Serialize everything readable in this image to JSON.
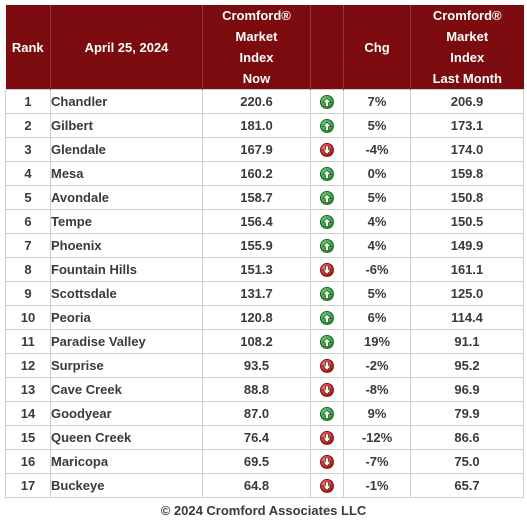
{
  "headers": {
    "rank": "Rank",
    "date": "April 25, 2024",
    "now": [
      "Cromford®",
      "Market",
      "Index",
      "Now"
    ],
    "chg": "Chg",
    "last": [
      "Cromford®",
      "Market",
      "Index",
      "Last Month"
    ]
  },
  "colors": {
    "header_bg": "#7b0b0e",
    "up": "#1f9a2e",
    "down": "#c11414"
  },
  "chart_data": {
    "type": "table",
    "columns": [
      "Rank",
      "April 25, 2024",
      "Cromford® Market Index Now",
      "",
      "Chg",
      "Cromford® Market Index Last Month"
    ],
    "rows": [
      {
        "rank": "1",
        "city": "Chandler",
        "now": "220.6",
        "dir": "up",
        "chg": "7%",
        "last": "206.9"
      },
      {
        "rank": "2",
        "city": "Gilbert",
        "now": "181.0",
        "dir": "up",
        "chg": "5%",
        "last": "173.1"
      },
      {
        "rank": "3",
        "city": "Glendale",
        "now": "167.9",
        "dir": "down",
        "chg": "-4%",
        "last": "174.0"
      },
      {
        "rank": "4",
        "city": "Mesa",
        "now": "160.2",
        "dir": "up",
        "chg": "0%",
        "last": "159.8"
      },
      {
        "rank": "5",
        "city": "Avondale",
        "now": "158.7",
        "dir": "up",
        "chg": "5%",
        "last": "150.8"
      },
      {
        "rank": "6",
        "city": "Tempe",
        "now": "156.4",
        "dir": "up",
        "chg": "4%",
        "last": "150.5"
      },
      {
        "rank": "7",
        "city": "Phoenix",
        "now": "155.9",
        "dir": "up",
        "chg": "4%",
        "last": "149.9"
      },
      {
        "rank": "8",
        "city": "Fountain Hills",
        "now": "151.3",
        "dir": "down",
        "chg": "-6%",
        "last": "161.1"
      },
      {
        "rank": "9",
        "city": "Scottsdale",
        "now": "131.7",
        "dir": "up",
        "chg": "5%",
        "last": "125.0"
      },
      {
        "rank": "10",
        "city": "Peoria",
        "now": "120.8",
        "dir": "up",
        "chg": "6%",
        "last": "114.4"
      },
      {
        "rank": "11",
        "city": "Paradise Valley",
        "now": "108.2",
        "dir": "up",
        "chg": "19%",
        "last": "91.1"
      },
      {
        "rank": "12",
        "city": "Surprise",
        "now": "93.5",
        "dir": "down",
        "chg": "-2%",
        "last": "95.2"
      },
      {
        "rank": "13",
        "city": "Cave Creek",
        "now": "88.8",
        "dir": "down",
        "chg": "-8%",
        "last": "96.9"
      },
      {
        "rank": "14",
        "city": "Goodyear",
        "now": "87.0",
        "dir": "up",
        "chg": "9%",
        "last": "79.9"
      },
      {
        "rank": "15",
        "city": "Queen Creek",
        "now": "76.4",
        "dir": "down",
        "chg": "-12%",
        "last": "86.6"
      },
      {
        "rank": "16",
        "city": "Maricopa",
        "now": "69.5",
        "dir": "down",
        "chg": "-7%",
        "last": "75.0"
      },
      {
        "rank": "17",
        "city": "Buckeye",
        "now": "64.8",
        "dir": "down",
        "chg": "-1%",
        "last": "65.7"
      }
    ]
  },
  "footer": "© 2024 Cromford Associates LLC"
}
